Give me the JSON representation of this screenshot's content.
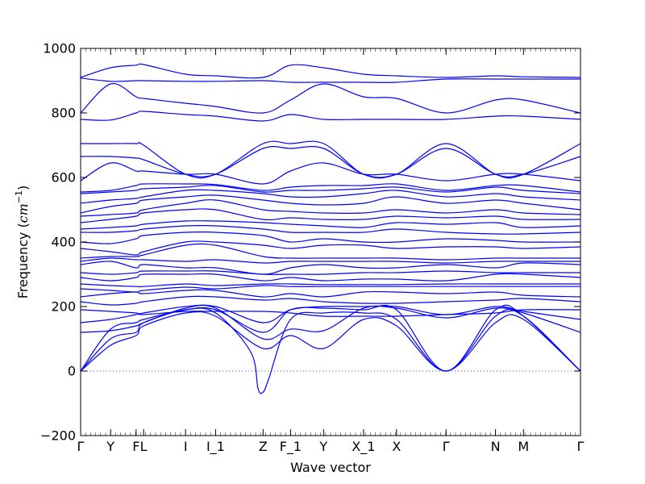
{
  "chart_data": {
    "type": "line",
    "xlabel": "Wave vector",
    "ylabel_prefix": "Frequency (",
    "ylabel_unit": "cm",
    "ylabel_exp": "−1",
    "ylabel_suffix": ")",
    "ylim": [
      -200,
      1000
    ],
    "yticks": [
      -200,
      0,
      200,
      400,
      600,
      800,
      1000
    ],
    "ytick_labels": [
      "−200",
      "0",
      "200",
      "400",
      "600",
      "800",
      "1000"
    ],
    "xlim": [
      0,
      1
    ],
    "kpoints": [
      {
        "label": "Γ",
        "x": 0.0
      },
      {
        "label": "Y",
        "x": 0.06
      },
      {
        "label": "F",
        "x": 0.111
      },
      {
        "label": "L",
        "x": 0.126
      },
      {
        "label": "I",
        "x": 0.21
      },
      {
        "label": "I_1",
        "x": 0.27
      },
      {
        "label": "Z",
        "x": 0.365
      },
      {
        "label": "F_1",
        "x": 0.42
      },
      {
        "label": "Y",
        "x": 0.486
      },
      {
        "label": "X_1",
        "x": 0.566
      },
      {
        "label": "X",
        "x": 0.632
      },
      {
        "label": "Γ",
        "x": 0.731
      },
      {
        "label": "N",
        "x": 0.83
      },
      {
        "label": "M",
        "x": 0.886
      },
      {
        "label": "Γ",
        "x": 1.0
      }
    ],
    "line_color": "#0000ff",
    "zero_line": true,
    "series": [
      {
        "x": [
          0.0,
          0.06,
          0.111,
          0.126,
          0.21,
          0.27,
          0.365,
          0.42,
          0.486,
          0.566,
          0.632,
          0.731,
          0.83,
          0.886,
          1.0
        ],
        "y": [
          0,
          130,
          150,
          160,
          190,
          190,
          120,
          190,
          195,
          190,
          190,
          0,
          190,
          170,
          0
        ]
      },
      {
        "x": [
          0.0,
          0.06,
          0.111,
          0.126,
          0.21,
          0.27,
          0.34,
          0.355,
          0.365,
          0.375,
          0.42,
          0.486,
          0.566,
          0.632,
          0.731,
          0.83,
          0.886,
          1.0
        ],
        "y": [
          0,
          100,
          120,
          150,
          190,
          180,
          60,
          -55,
          -65,
          -30,
          160,
          180,
          180,
          160,
          0,
          170,
          170,
          0
        ]
      },
      {
        "x": [
          0.0,
          0.06,
          0.111,
          0.126,
          0.21,
          0.27,
          0.365,
          0.42,
          0.486,
          0.566,
          0.632,
          0.731,
          0.83,
          0.886,
          1.0
        ],
        "y": [
          0,
          80,
          110,
          140,
          180,
          170,
          70,
          110,
          70,
          160,
          140,
          0,
          150,
          160,
          0
        ]
      },
      {
        "x": [
          0.0,
          0.06,
          0.111,
          0.126,
          0.21,
          0.27,
          0.365,
          0.42,
          0.486,
          0.566,
          0.632,
          0.731,
          0.83,
          0.886,
          1.0
        ],
        "y": [
          120,
          125,
          140,
          150,
          195,
          195,
          100,
          130,
          125,
          195,
          195,
          165,
          195,
          180,
          120
        ]
      },
      {
        "x": [
          0.0,
          0.06,
          0.111,
          0.126,
          0.21,
          0.27,
          0.365,
          0.42,
          0.486,
          0.566,
          0.632,
          0.731,
          0.83,
          0.886,
          1.0
        ],
        "y": [
          150,
          160,
          175,
          180,
          200,
          200,
          150,
          190,
          200,
          200,
          200,
          175,
          200,
          185,
          160
        ]
      },
      {
        "x": [
          0.0,
          0.06,
          0.111,
          0.126,
          0.21,
          0.27,
          0.365,
          0.42,
          0.486,
          0.566,
          0.632,
          0.731,
          0.83,
          0.886,
          1.0
        ],
        "y": [
          190,
          185,
          180,
          175,
          185,
          185,
          185,
          180,
          170,
          170,
          170,
          175,
          180,
          190,
          190
        ]
      },
      {
        "x": [
          0.0,
          0.06,
          0.111,
          0.126,
          0.21,
          0.27,
          0.365,
          0.42,
          0.486,
          0.566,
          0.632,
          0.731,
          0.83,
          0.886,
          1.0
        ],
        "y": [
          215,
          205,
          210,
          215,
          230,
          230,
          220,
          225,
          215,
          210,
          210,
          215,
          220,
          225,
          215
        ]
      },
      {
        "x": [
          0.0,
          0.06,
          0.111,
          0.126,
          0.21,
          0.27,
          0.365,
          0.42,
          0.486,
          0.566,
          0.632,
          0.731,
          0.83,
          0.886,
          1.0
        ],
        "y": [
          230,
          240,
          245,
          240,
          250,
          250,
          230,
          240,
          230,
          245,
          245,
          240,
          245,
          235,
          230
        ]
      },
      {
        "x": [
          0.0,
          0.06,
          0.111,
          0.126,
          0.21,
          0.27,
          0.365,
          0.42,
          0.486,
          0.566,
          0.632,
          0.731,
          0.83,
          0.886,
          1.0
        ],
        "y": [
          255,
          250,
          245,
          250,
          260,
          255,
          265,
          262,
          262,
          262,
          262,
          262,
          262,
          262,
          262
        ]
      },
      {
        "x": [
          0.0,
          0.06,
          0.111,
          0.126,
          0.21,
          0.27,
          0.365,
          0.42,
          0.486,
          0.566,
          0.632,
          0.731,
          0.83,
          0.886,
          1.0
        ],
        "y": [
          270,
          265,
          262,
          262,
          270,
          265,
          270,
          270,
          268,
          268,
          268,
          270,
          270,
          270,
          270
        ]
      },
      {
        "x": [
          0.0,
          0.06,
          0.111,
          0.126,
          0.21,
          0.27,
          0.365,
          0.42,
          0.486,
          0.566,
          0.632,
          0.731,
          0.83,
          0.886,
          1.0
        ],
        "y": [
          290,
          280,
          290,
          300,
          300,
          300,
          280,
          290,
          280,
          285,
          285,
          280,
          300,
          300,
          290
        ]
      },
      {
        "x": [
          0.0,
          0.06,
          0.111,
          0.126,
          0.21,
          0.27,
          0.365,
          0.42,
          0.486,
          0.566,
          0.632,
          0.731,
          0.83,
          0.886,
          1.0
        ],
        "y": [
          305,
          300,
          305,
          310,
          310,
          310,
          300,
          300,
          300,
          305,
          305,
          310,
          305,
          305,
          305
        ]
      },
      {
        "x": [
          0.0,
          0.06,
          0.111,
          0.126,
          0.21,
          0.27,
          0.365,
          0.42,
          0.486,
          0.566,
          0.632,
          0.731,
          0.83,
          0.886,
          1.0
        ],
        "y": [
          330,
          340,
          320,
          330,
          320,
          320,
          300,
          320,
          330,
          320,
          320,
          330,
          320,
          335,
          330
        ]
      },
      {
        "x": [
          0.0,
          0.06,
          0.111,
          0.126,
          0.21,
          0.27,
          0.365,
          0.42,
          0.486,
          0.566,
          0.632,
          0.731,
          0.83,
          0.886,
          1.0
        ],
        "y": [
          340,
          350,
          345,
          345,
          340,
          345,
          335,
          340,
          340,
          340,
          340,
          335,
          340,
          340,
          340
        ]
      },
      {
        "x": [
          0.0,
          0.06,
          0.111,
          0.126,
          0.21,
          0.27,
          0.365,
          0.42,
          0.486,
          0.566,
          0.632,
          0.731,
          0.83,
          0.886,
          1.0
        ],
        "y": [
          350,
          355,
          355,
          360,
          390,
          390,
          355,
          350,
          350,
          350,
          350,
          345,
          350,
          350,
          350
        ]
      },
      {
        "x": [
          0.0,
          0.06,
          0.111,
          0.126,
          0.21,
          0.27,
          0.365,
          0.42,
          0.486,
          0.566,
          0.632,
          0.731,
          0.83,
          0.886,
          1.0
        ],
        "y": [
          380,
          370,
          360,
          370,
          400,
          400,
          390,
          380,
          390,
          390,
          380,
          385,
          385,
          380,
          385
        ]
      },
      {
        "x": [
          0.0,
          0.06,
          0.111,
          0.126,
          0.21,
          0.27,
          0.365,
          0.42,
          0.486,
          0.566,
          0.632,
          0.731,
          0.83,
          0.886,
          1.0
        ],
        "y": [
          400,
          395,
          410,
          420,
          430,
          430,
          420,
          400,
          410,
          400,
          400,
          410,
          405,
          400,
          400
        ]
      },
      {
        "x": [
          0.0,
          0.06,
          0.111,
          0.126,
          0.21,
          0.27,
          0.365,
          0.42,
          0.486,
          0.566,
          0.632,
          0.731,
          0.83,
          0.886,
          1.0
        ],
        "y": [
          430,
          430,
          435,
          440,
          450,
          450,
          440,
          430,
          430,
          430,
          440,
          430,
          425,
          425,
          430
        ]
      },
      {
        "x": [
          0.0,
          0.06,
          0.111,
          0.126,
          0.21,
          0.27,
          0.365,
          0.42,
          0.486,
          0.566,
          0.632,
          0.731,
          0.83,
          0.886,
          1.0
        ],
        "y": [
          440,
          445,
          450,
          455,
          465,
          465,
          460,
          455,
          450,
          445,
          460,
          455,
          460,
          445,
          450
        ]
      },
      {
        "x": [
          0.0,
          0.06,
          0.111,
          0.126,
          0.21,
          0.27,
          0.365,
          0.42,
          0.486,
          0.566,
          0.632,
          0.731,
          0.83,
          0.886,
          1.0
        ],
        "y": [
          460,
          470,
          480,
          490,
          500,
          500,
          470,
          475,
          470,
          470,
          480,
          475,
          480,
          470,
          470
        ]
      },
      {
        "x": [
          0.0,
          0.06,
          0.111,
          0.126,
          0.21,
          0.27,
          0.365,
          0.42,
          0.486,
          0.566,
          0.632,
          0.731,
          0.83,
          0.886,
          1.0
        ],
        "y": [
          480,
          485,
          490,
          500,
          520,
          530,
          500,
          495,
          490,
          490,
          500,
          490,
          500,
          490,
          485
        ]
      },
      {
        "x": [
          0.0,
          0.06,
          0.111,
          0.126,
          0.21,
          0.27,
          0.365,
          0.42,
          0.486,
          0.566,
          0.632,
          0.731,
          0.83,
          0.886,
          1.0
        ],
        "y": [
          490,
          510,
          520,
          530,
          540,
          545,
          530,
          520,
          515,
          520,
          540,
          520,
          530,
          520,
          500
        ]
      },
      {
        "x": [
          0.0,
          0.06,
          0.111,
          0.126,
          0.21,
          0.27,
          0.365,
          0.42,
          0.486,
          0.566,
          0.632,
          0.731,
          0.83,
          0.886,
          1.0
        ],
        "y": [
          520,
          530,
          535,
          540,
          560,
          560,
          550,
          540,
          540,
          550,
          560,
          540,
          550,
          540,
          530
        ]
      },
      {
        "x": [
          0.0,
          0.06,
          0.111,
          0.126,
          0.21,
          0.27,
          0.365,
          0.42,
          0.486,
          0.566,
          0.632,
          0.731,
          0.83,
          0.886,
          1.0
        ],
        "y": [
          550,
          555,
          560,
          565,
          570,
          575,
          555,
          560,
          560,
          565,
          570,
          555,
          570,
          560,
          550
        ]
      },
      {
        "x": [
          0.0,
          0.06,
          0.111,
          0.126,
          0.21,
          0.27,
          0.365,
          0.42,
          0.486,
          0.566,
          0.632,
          0.731,
          0.83,
          0.886,
          1.0
        ],
        "y": [
          555,
          560,
          575,
          580,
          580,
          578,
          560,
          570,
          575,
          575,
          580,
          560,
          575,
          575,
          555
        ]
      },
      {
        "x": [
          0.0,
          0.06,
          0.111,
          0.126,
          0.21,
          0.27,
          0.365,
          0.42,
          0.486,
          0.566,
          0.632,
          0.731,
          0.83,
          0.886,
          1.0
        ],
        "y": [
          590,
          645,
          620,
          620,
          610,
          610,
          580,
          620,
          645,
          610,
          610,
          590,
          610,
          610,
          590
        ]
      },
      {
        "x": [
          0.0,
          0.06,
          0.111,
          0.126,
          0.21,
          0.27,
          0.365,
          0.42,
          0.486,
          0.566,
          0.632,
          0.731,
          0.83,
          0.886,
          1.0
        ],
        "y": [
          665,
          665,
          660,
          655,
          610,
          610,
          690,
          690,
          690,
          610,
          610,
          690,
          610,
          610,
          665
        ]
      },
      {
        "x": [
          0.0,
          0.06,
          0.111,
          0.126,
          0.21,
          0.27,
          0.365,
          0.42,
          0.486,
          0.566,
          0.632,
          0.731,
          0.83,
          0.886,
          1.0
        ],
        "y": [
          705,
          705,
          705,
          700,
          610,
          610,
          705,
          705,
          705,
          610,
          610,
          705,
          610,
          610,
          705
        ]
      },
      {
        "x": [
          0.0,
          0.06,
          0.111,
          0.126,
          0.21,
          0.27,
          0.365,
          0.42,
          0.486,
          0.566,
          0.632,
          0.731,
          0.83,
          0.886,
          1.0
        ],
        "y": [
          780,
          778,
          800,
          805,
          795,
          790,
          775,
          795,
          780,
          780,
          780,
          780,
          790,
          790,
          780
        ]
      },
      {
        "x": [
          0.0,
          0.06,
          0.111,
          0.126,
          0.21,
          0.27,
          0.365,
          0.42,
          0.486,
          0.566,
          0.632,
          0.731,
          0.83,
          0.886,
          1.0
        ],
        "y": [
          800,
          890,
          850,
          845,
          830,
          820,
          800,
          840,
          890,
          850,
          845,
          800,
          840,
          840,
          800
        ]
      },
      {
        "x": [
          0.0,
          0.06,
          0.111,
          0.126,
          0.21,
          0.27,
          0.365,
          0.42,
          0.486,
          0.566,
          0.632,
          0.731,
          0.83,
          0.886,
          1.0
        ],
        "y": [
          908,
          898,
          900,
          900,
          898,
          898,
          900,
          895,
          895,
          895,
          895,
          905,
          905,
          905,
          905
        ]
      },
      {
        "x": [
          0.0,
          0.06,
          0.111,
          0.126,
          0.21,
          0.27,
          0.365,
          0.42,
          0.486,
          0.566,
          0.632,
          0.731,
          0.83,
          0.886,
          1.0
        ],
        "y": [
          910,
          940,
          948,
          950,
          920,
          915,
          910,
          948,
          940,
          920,
          915,
          910,
          915,
          912,
          910
        ]
      }
    ]
  }
}
